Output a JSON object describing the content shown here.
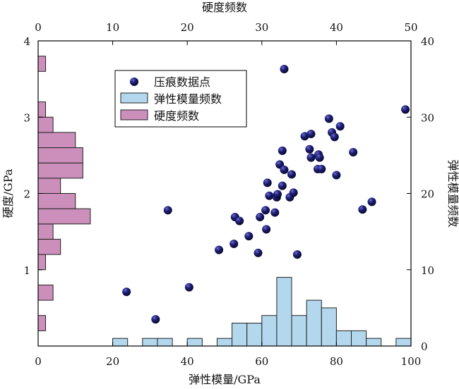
{
  "chart_data": {
    "type": "scatter",
    "axes": {
      "x_bottom": {
        "label": "弹性模量/GPa",
        "range": [
          0,
          100
        ],
        "ticks": [
          "0",
          "20",
          "40",
          "60",
          "80",
          "100"
        ]
      },
      "y_left": {
        "label": "硬度/GPa",
        "range": [
          0,
          4
        ],
        "ticks": [
          "1",
          "2",
          "3",
          "4"
        ]
      },
      "x_top": {
        "label": "硬度频数",
        "range": [
          0,
          50
        ],
        "ticks": [
          "0",
          "10",
          "20",
          "30",
          "40",
          "50"
        ]
      },
      "y_right": {
        "label": "弹性模量频数",
        "range": [
          0,
          40
        ],
        "ticks": [
          "0",
          "10",
          "20",
          "30",
          "40"
        ]
      }
    },
    "legend": {
      "position": "upper-left",
      "entries": [
        "压痕数据点",
        "弹性模量频数",
        "硬度频数"
      ]
    },
    "colors": {
      "points": "#12124a",
      "modulus_bars": "#b3d8ee",
      "hardness_bars": "#cc8fbc",
      "bar_edge": "#222222"
    },
    "grid": false,
    "series": [
      {
        "name": "压痕数据点",
        "kind": "scatter",
        "points": [
          [
            23.7,
            0.71
          ],
          [
            31.5,
            0.35
          ],
          [
            34.8,
            1.78
          ],
          [
            40.5,
            0.77
          ],
          [
            48.5,
            1.26
          ],
          [
            52.5,
            1.34
          ],
          [
            52.8,
            1.69
          ],
          [
            54,
            1.64
          ],
          [
            56.5,
            1.44
          ],
          [
            59,
            1.22
          ],
          [
            59.5,
            1.69
          ],
          [
            61,
            1.78
          ],
          [
            61.2,
            1.53
          ],
          [
            61.5,
            2.14
          ],
          [
            62,
            1.97
          ],
          [
            63.5,
            1.75
          ],
          [
            64,
            1.95
          ],
          [
            64.2,
            1.99
          ],
          [
            64.8,
            2.38
          ],
          [
            65.5,
            2.1
          ],
          [
            65.5,
            2.56
          ],
          [
            66,
            2.31
          ],
          [
            66,
            3.63
          ],
          [
            67.5,
            1.95
          ],
          [
            68,
            2.25
          ],
          [
            68.5,
            2.01
          ],
          [
            69.5,
            1.2
          ],
          [
            71.5,
            2.75
          ],
          [
            72.8,
            2.58
          ],
          [
            73.2,
            2.47
          ],
          [
            73.2,
            2.78
          ],
          [
            75,
            2.32
          ],
          [
            75.2,
            2.51
          ],
          [
            75.5,
            2.47
          ],
          [
            76,
            2.32
          ],
          [
            78,
            2.98
          ],
          [
            78.8,
            2.8
          ],
          [
            79.5,
            2.74
          ],
          [
            80,
            2.24
          ],
          [
            81,
            2.88
          ],
          [
            84.5,
            2.54
          ],
          [
            87,
            1.79
          ],
          [
            89.5,
            1.89
          ],
          [
            98.5,
            3.1
          ]
        ]
      },
      {
        "name": "弹性模量频数",
        "kind": "histogram",
        "bin_width": 4,
        "bins": [
          {
            "start": 20,
            "count": 1
          },
          {
            "start": 28,
            "count": 1
          },
          {
            "start": 32,
            "count": 1
          },
          {
            "start": 40,
            "count": 1
          },
          {
            "start": 48,
            "count": 1
          },
          {
            "start": 52,
            "count": 3
          },
          {
            "start": 56,
            "count": 3
          },
          {
            "start": 60,
            "count": 4
          },
          {
            "start": 64,
            "count": 9
          },
          {
            "start": 68,
            "count": 4
          },
          {
            "start": 72,
            "count": 6
          },
          {
            "start": 76,
            "count": 5
          },
          {
            "start": 80,
            "count": 2
          },
          {
            "start": 84,
            "count": 2
          },
          {
            "start": 88,
            "count": 1
          },
          {
            "start": 96,
            "count": 1
          }
        ]
      },
      {
        "name": "硬度频数",
        "kind": "histogram",
        "bin_width": 0.2,
        "bins": [
          {
            "start": 0.2,
            "count": 1
          },
          {
            "start": 0.6,
            "count": 2
          },
          {
            "start": 1.0,
            "count": 1
          },
          {
            "start": 1.2,
            "count": 3
          },
          {
            "start": 1.4,
            "count": 2
          },
          {
            "start": 1.6,
            "count": 7
          },
          {
            "start": 1.8,
            "count": 5
          },
          {
            "start": 2.0,
            "count": 3
          },
          {
            "start": 2.2,
            "count": 6
          },
          {
            "start": 2.4,
            "count": 6
          },
          {
            "start": 2.6,
            "count": 5
          },
          {
            "start": 2.8,
            "count": 2
          },
          {
            "start": 3.0,
            "count": 1
          },
          {
            "start": 3.6,
            "count": 1
          }
        ]
      }
    ]
  }
}
